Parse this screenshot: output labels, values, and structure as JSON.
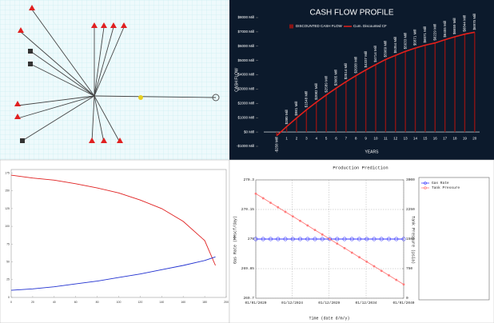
{
  "chart_data": [
    {
      "type": "bar",
      "title": "CASH FLOW PROFILE",
      "x_label": "YEARS",
      "y_label": "CASH FLOW",
      "categories": [
        null,
        "1",
        "2",
        "3",
        "4",
        "5",
        "6",
        "7",
        "8",
        "9",
        "10",
        "11",
        "12",
        "13",
        "14",
        "15",
        "16",
        "17",
        "18",
        "19",
        "20"
      ],
      "series": [
        {
          "name": "DISCOUNTED CASH FLOW",
          "color": "#8b1414",
          "kind": "bar",
          "values": [
            -258,
            380,
            981,
            1548,
            2082,
            2589,
            3065,
            3514,
            3938,
            4337,
            4714,
            5069,
            5354,
            5633,
            5871,
            6071,
            6229,
            6455,
            6659,
            6844,
            6975
          ],
          "value_labels": [
            "-$258 Mill",
            "$380 Mill",
            "$981 Mill",
            "$1548 Mill",
            "$2082 Mill",
            "$2589 Mill",
            "$3065 Mill",
            "$3514 Mill",
            "$3938 Mill",
            "$4337 Mill",
            "$4714 Mill",
            "$5069 Mill",
            "$5354 Mill",
            "$5633 Mill",
            "$5871 Mill",
            "$6071 Mill",
            "$6229 Mill",
            "$6455 Mill",
            "$6659 Mill",
            "$6844 Mill",
            "$6975 Mill"
          ]
        },
        {
          "name": "Cum. Discounted CF",
          "color": "#e3201b",
          "kind": "line",
          "values": [
            -258,
            380,
            981,
            1548,
            2082,
            2589,
            3065,
            3514,
            3938,
            4337,
            4714,
            5069,
            5354,
            5633,
            5871,
            6071,
            6229,
            6455,
            6659,
            6844,
            6975
          ]
        }
      ],
      "ylim": [
        -1000,
        8000
      ],
      "yticks": [
        {
          "value": -1000,
          "label": "-$1000 Mill"
        },
        {
          "value": 0,
          "label": "$0 Mill"
        },
        {
          "value": 1000,
          "label": "$1000 Mill"
        },
        {
          "value": 2000,
          "label": "$2000 Mill"
        },
        {
          "value": 3000,
          "label": "$3000 Mill"
        },
        {
          "value": 4000,
          "label": "$4000 Mill"
        },
        {
          "value": 5000,
          "label": "$5000 Mill"
        },
        {
          "value": 6000,
          "label": "$6000 Mill"
        },
        {
          "value": 7000,
          "label": "$7000 Mill"
        },
        {
          "value": 8000,
          "label": "$8000 Mill"
        }
      ]
    },
    {
      "type": "line",
      "x": [
        0,
        20,
        40,
        60,
        80,
        100,
        120,
        140,
        160,
        180,
        190
      ],
      "series": [
        {
          "name": "",
          "color": "#e02020",
          "values": [
            172,
            168,
            165,
            160,
            154,
            147,
            137,
            125,
            107,
            80,
            45
          ]
        },
        {
          "name": "",
          "color": "#2030d0",
          "values": [
            10,
            12,
            15,
            19,
            23,
            28,
            33,
            39,
            45,
            52,
            57
          ]
        }
      ],
      "xlim": [
        0,
        200
      ],
      "xticks": [
        0,
        20,
        40,
        60,
        80,
        100,
        120,
        140,
        160,
        180,
        200
      ],
      "ylim": [
        0,
        180
      ],
      "yticks": [
        0,
        25,
        50,
        75,
        100,
        125,
        150,
        175
      ]
    },
    {
      "type": "line",
      "title": "Production Prediction",
      "x_label": "Time (date d/m/y)",
      "y_label": "Gas Rate (MMscf/day)",
      "y2_label": "Tank Pressure (psia)",
      "x": [
        2020,
        2021,
        2022,
        2023,
        2024,
        2025,
        2026,
        2027,
        2028,
        2029,
        2030,
        2031,
        2032,
        2033,
        2034,
        2035,
        2036,
        2037,
        2038,
        2039,
        2040
      ],
      "series": [
        {
          "name": "Gas Rate",
          "color": "#3a3aff",
          "marker": "circle",
          "values": [
            270,
            270,
            270,
            270,
            270,
            270,
            270,
            270,
            270,
            270,
            270,
            270,
            270,
            270,
            270,
            270,
            270,
            270,
            270,
            270,
            270
          ]
        },
        {
          "name": "Tank Pressure",
          "color": "#ff7a7a",
          "axis": "y2",
          "marker": "dot",
          "values": [
            2650,
            2535,
            2420,
            2305,
            2190,
            2075,
            1960,
            1845,
            1730,
            1615,
            1500,
            1385,
            1270,
            1155,
            1040,
            925,
            810,
            695,
            580,
            465,
            350
          ]
        }
      ],
      "xlim": [
        2020,
        2040
      ],
      "xticks": [
        {
          "value": 2020,
          "label": "01/01/2020"
        },
        {
          "value": 2024.92,
          "label": "01/12/2024"
        },
        {
          "value": 2029.92,
          "label": "01/12/2029"
        },
        {
          "value": 2034.92,
          "label": "01/12/2034"
        },
        {
          "value": 2040,
          "label": "01/01/2040"
        }
      ],
      "ylim": [
        269.7,
        270.3
      ],
      "yticks": [
        269.7,
        269.85,
        270,
        270.15,
        270.3
      ],
      "y2lim": [
        0,
        3000
      ],
      "y2ticks": [
        0,
        750,
        1500,
        2250,
        3000
      ],
      "grid": true
    }
  ]
}
